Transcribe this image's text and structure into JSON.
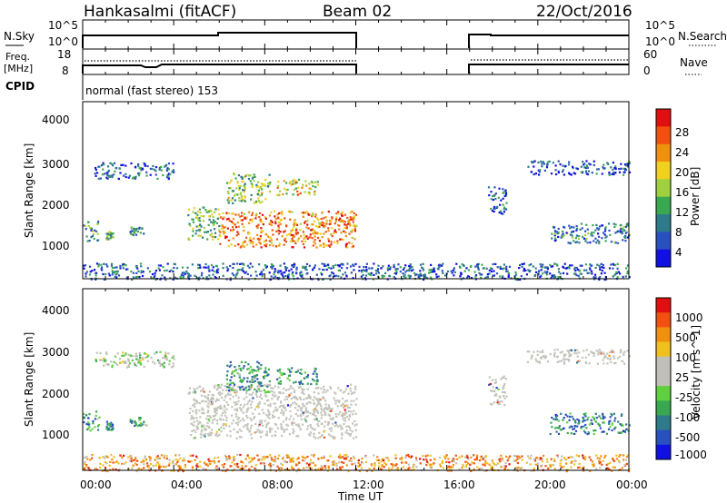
{
  "header": {
    "station": "Hankasalmi (fitACF)",
    "beam": "Beam 02",
    "date": "22/Oct/2016"
  },
  "nsky_panel": {
    "left_label": "N.Sky",
    "left_ticks": [
      "10^5",
      "10^0"
    ],
    "right_label": "N.Search",
    "right_ticks": [
      "10^5",
      "10^0"
    ]
  },
  "freq_panel": {
    "left_label_line1": "Freq.",
    "left_label_line2": "[MHz]",
    "left_ticks": [
      "18",
      "8"
    ],
    "right_label": "Nave",
    "right_ticks": [
      "60",
      "0"
    ]
  },
  "cpid": {
    "label": "CPID",
    "text": "normal (fast stereo) 153"
  },
  "x_axis": {
    "label": "Time UT",
    "ticks": [
      "00:00",
      "04:00",
      "08:00",
      "12:00",
      "16:00",
      "20:00",
      "00:00"
    ]
  },
  "colors": {
    "scale": [
      "#1010e0",
      "#2a50c0",
      "#2e7a8a",
      "#3aa850",
      "#a0d040",
      "#f0d020",
      "#f09010",
      "#f05010",
      "#e01010"
    ],
    "velocity_scale": [
      "#e01010",
      "#f05010",
      "#f09010",
      "#f0c020",
      "#c0c0b8",
      "#c0c0b8",
      "#60d040",
      "#3aa850",
      "#2e7a8a",
      "#2a50c0",
      "#1010e0"
    ],
    "ground": "#c4c4bc"
  },
  "chart_data": [
    {
      "type": "heatmap",
      "title": "",
      "xlabel": "",
      "ylabel": "Slant Range [km]",
      "x_range_hours": [
        0,
        24
      ],
      "ylim": [
        200,
        4600
      ],
      "y_ticks": [
        "1000",
        "2000",
        "3000",
        "4000"
      ],
      "colorbar_label": "Power [dB]",
      "colorbar_ticks": [
        "4",
        "8",
        "12",
        "16",
        "20",
        "24",
        "28"
      ],
      "scatter_regions": [
        {
          "t": [
            0.0,
            0.7
          ],
          "r": [
            1150,
            1650
          ],
          "level": 0.35
        },
        {
          "t": [
            0.5,
            4.0
          ],
          "r": [
            2700,
            3100
          ],
          "level": 0.2
        },
        {
          "t": [
            1.0,
            1.3
          ],
          "r": [
            1200,
            1400
          ],
          "level": 0.45
        },
        {
          "t": [
            2.0,
            2.8
          ],
          "r": [
            1300,
            1500
          ],
          "level": 0.35
        },
        {
          "t": [
            4.6,
            6.0
          ],
          "r": [
            1200,
            2000
          ],
          "level": 0.45
        },
        {
          "t": [
            6.0,
            12.0
          ],
          "r": [
            1000,
            1900
          ],
          "level": 0.75
        },
        {
          "t": [
            6.3,
            8.2
          ],
          "r": [
            2100,
            2850
          ],
          "level": 0.45
        },
        {
          "t": [
            8.5,
            10.3
          ],
          "r": [
            2300,
            2700
          ],
          "level": 0.6
        },
        {
          "t": [
            17.8,
            18.6
          ],
          "r": [
            1800,
            2500
          ],
          "level": 0.2
        },
        {
          "t": [
            19.5,
            24.0
          ],
          "r": [
            2800,
            3150
          ],
          "level": 0.15
        },
        {
          "t": [
            20.5,
            24.0
          ],
          "r": [
            1100,
            1600
          ],
          "level": 0.3
        },
        {
          "t": [
            0.0,
            24.0
          ],
          "r": [
            200,
            600
          ],
          "level": 0.2
        }
      ]
    },
    {
      "type": "heatmap",
      "title": "",
      "xlabel": "Time UT",
      "ylabel": "Slant Range [km]",
      "x_range_hours": [
        0,
        24
      ],
      "ylim": [
        200,
        4600
      ],
      "y_ticks": [
        "1000",
        "2000",
        "3000",
        "4000"
      ],
      "colorbar_label": "Velocity [m s^-1]",
      "colorbar_ticks": [
        "1000",
        "500",
        "100",
        "25",
        "-25",
        "-100",
        "-500",
        "-1000"
      ],
      "scatter_regions": [
        {
          "t": [
            0.0,
            0.7
          ],
          "r": [
            1150,
            1650
          ],
          "level": 0.7
        },
        {
          "t": [
            0.5,
            4.0
          ],
          "r": [
            2700,
            3100
          ],
          "level": 0.5
        },
        {
          "t": [
            1.0,
            1.3
          ],
          "r": [
            1200,
            1400
          ],
          "level": 0.75
        },
        {
          "t": [
            2.0,
            2.8
          ],
          "r": [
            1300,
            1500
          ],
          "level": 0.7
        },
        {
          "t": [
            4.6,
            12.0
          ],
          "r": [
            1000,
            2300
          ],
          "level": 0.45
        },
        {
          "t": [
            6.3,
            8.2
          ],
          "r": [
            2100,
            2850
          ],
          "level": 0.7
        },
        {
          "t": [
            8.5,
            10.3
          ],
          "r": [
            2300,
            2700
          ],
          "level": 0.7
        },
        {
          "t": [
            17.8,
            18.6
          ],
          "r": [
            1800,
            2500
          ],
          "level": 0.45
        },
        {
          "t": [
            19.5,
            24.0
          ],
          "r": [
            2800,
            3150
          ],
          "level": 0.45
        },
        {
          "t": [
            20.5,
            24.0
          ],
          "r": [
            1100,
            1600
          ],
          "level": 0.75
        },
        {
          "t": [
            0.0,
            24.0
          ],
          "r": [
            200,
            600
          ],
          "level": 0.25
        }
      ]
    }
  ]
}
